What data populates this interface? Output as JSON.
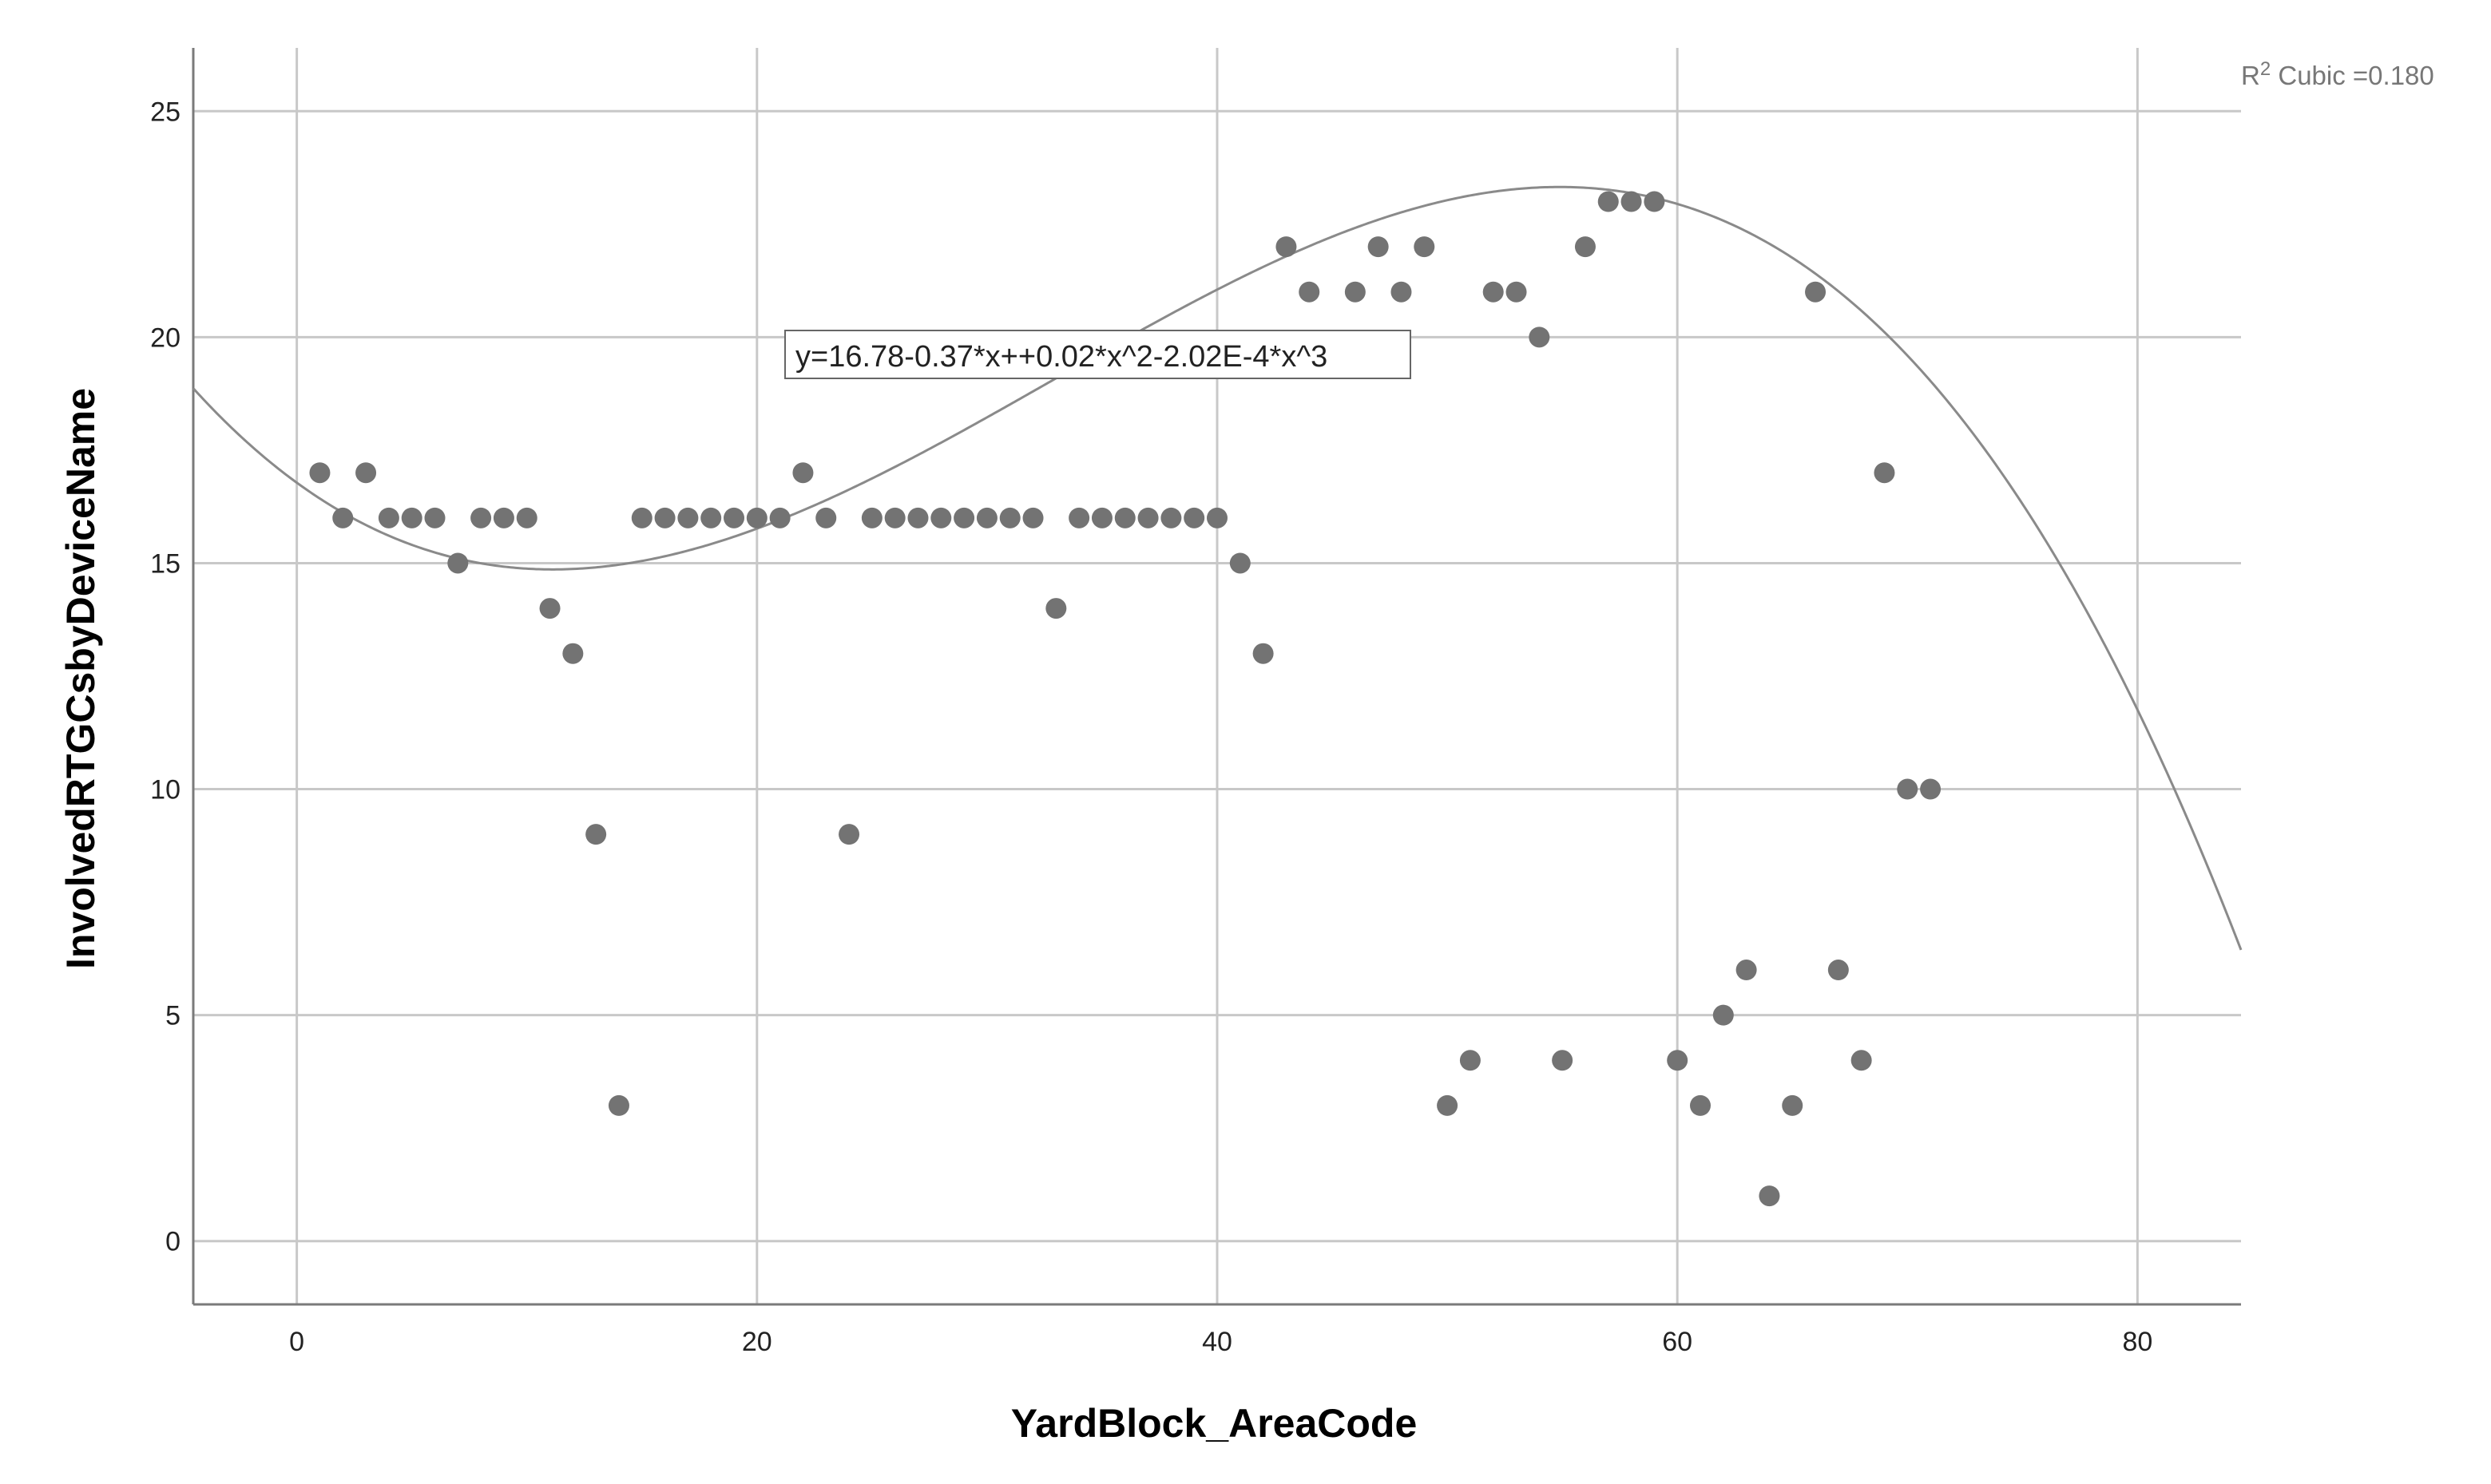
{
  "chart_data": {
    "type": "scatter",
    "xlabel": "YardBlock_AreaCode",
    "ylabel": "InvolvedRTGCsbyDeviceName",
    "xlim": [
      -4.5,
      84.5
    ],
    "ylim": [
      -1.4,
      26.4
    ],
    "x_ticks": [
      0,
      20,
      40,
      60,
      80
    ],
    "y_ticks": [
      0,
      5,
      10,
      15,
      20,
      25
    ],
    "grid": true,
    "colors": {
      "point": "#737373",
      "fit_line": "#8a8a8a",
      "grid": "#c8c8c8",
      "axis": "#7a7a7a"
    },
    "points": [
      [
        1,
        17
      ],
      [
        2,
        16
      ],
      [
        3,
        17
      ],
      [
        4,
        16
      ],
      [
        5,
        16
      ],
      [
        6,
        16
      ],
      [
        7,
        15
      ],
      [
        8,
        16
      ],
      [
        9,
        16
      ],
      [
        10,
        16
      ],
      [
        11,
        14
      ],
      [
        12,
        13
      ],
      [
        13,
        9
      ],
      [
        14,
        3
      ],
      [
        15,
        16
      ],
      [
        16,
        16
      ],
      [
        17,
        16
      ],
      [
        18,
        16
      ],
      [
        19,
        16
      ],
      [
        20,
        16
      ],
      [
        21,
        16
      ],
      [
        22,
        17
      ],
      [
        23,
        16
      ],
      [
        24,
        9
      ],
      [
        25,
        16
      ],
      [
        26,
        16
      ],
      [
        27,
        16
      ],
      [
        28,
        16
      ],
      [
        29,
        16
      ],
      [
        30,
        16
      ],
      [
        31,
        16
      ],
      [
        32,
        16
      ],
      [
        33,
        14
      ],
      [
        34,
        16
      ],
      [
        35,
        16
      ],
      [
        36,
        16
      ],
      [
        37,
        16
      ],
      [
        38,
        16
      ],
      [
        39,
        16
      ],
      [
        40,
        16
      ],
      [
        41,
        15
      ],
      [
        42,
        13
      ],
      [
        43,
        22
      ],
      [
        44,
        21
      ],
      [
        46,
        21
      ],
      [
        47,
        22
      ],
      [
        48,
        21
      ],
      [
        49,
        22
      ],
      [
        50,
        3
      ],
      [
        51,
        4
      ],
      [
        52,
        21
      ],
      [
        53,
        21
      ],
      [
        54,
        20
      ],
      [
        55,
        4
      ],
      [
        56,
        22
      ],
      [
        57,
        23
      ],
      [
        58,
        23
      ],
      [
        59,
        23
      ],
      [
        60,
        4
      ],
      [
        61,
        3
      ],
      [
        62,
        5
      ],
      [
        63,
        6
      ],
      [
        64,
        1
      ],
      [
        65,
        3
      ],
      [
        66,
        21
      ],
      [
        67,
        6
      ],
      [
        68,
        4
      ],
      [
        69,
        17
      ],
      [
        70,
        10
      ],
      [
        71,
        10
      ]
    ],
    "fit": {
      "model": "Cubic",
      "coefficients": [
        16.78,
        -0.37,
        0.02,
        -0.000202
      ],
      "equation_label": "y=16.78-0.37*x++0.02*x^2-2.02E-4*x^3",
      "r2_prefix": "R",
      "r2_sup": "2",
      "r2_text": " Cubic =0.180"
    }
  }
}
